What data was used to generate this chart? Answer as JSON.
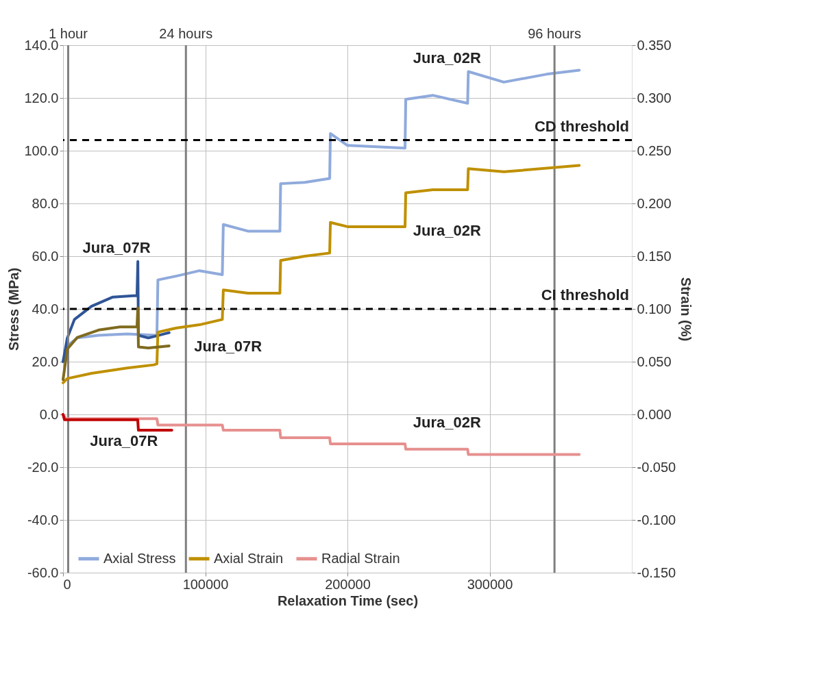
{
  "chart_data": {
    "type": "line",
    "xlabel": "Relaxation Time (sec)",
    "ylabel": "Stress (MPa)",
    "y2label": "Strain (%)",
    "xlim": [
      0,
      400000
    ],
    "xticks": [
      0,
      100000,
      200000,
      300000
    ],
    "ylim": [
      -60,
      140
    ],
    "yticks": [
      {
        "value": -60,
        "label": "-60.0"
      },
      {
        "value": -40,
        "label": "-40.0"
      },
      {
        "value": -20,
        "label": "-20.0"
      },
      {
        "value": 0,
        "label": "0.0"
      },
      {
        "value": 20,
        "label": "20.0"
      },
      {
        "value": 40,
        "label": "40.0"
      },
      {
        "value": 60,
        "label": "60.0"
      },
      {
        "value": 80,
        "label": "80.0"
      },
      {
        "value": 100,
        "label": "100.0"
      },
      {
        "value": 120,
        "label": "120.0"
      },
      {
        "value": 140,
        "label": "140.0"
      }
    ],
    "y2lim": [
      -0.15,
      0.35
    ],
    "y2ticks": [
      {
        "value": -0.15,
        "label": "-0.150"
      },
      {
        "value": -0.1,
        "label": "-0.100"
      },
      {
        "value": -0.05,
        "label": "-0.050"
      },
      {
        "value": 0,
        "label": "0.000"
      },
      {
        "value": 0.05,
        "label": "0.050"
      },
      {
        "value": 0.1,
        "label": "0.100"
      },
      {
        "value": 0.15,
        "label": "0.150"
      },
      {
        "value": 0.2,
        "label": "0.200"
      },
      {
        "value": 0.25,
        "label": "0.250"
      },
      {
        "value": 0.3,
        "label": "0.300"
      },
      {
        "value": 0.35,
        "label": "0.350"
      }
    ],
    "grid": true,
    "legend": "bottom",
    "marker": "none",
    "line_style": "solid",
    "series": [
      {
        "name": "Axial Stress",
        "color": "#8faadc",
        "x": [
          0,
          3000,
          10000,
          25000,
          45000,
          66000,
          66700,
          80000,
          96000,
          112000,
          112700,
          130000,
          152500,
          153000,
          170000,
          187500,
          188000,
          200000,
          240500,
          241000,
          260000,
          284500,
          285000,
          310000,
          340000,
          363000
        ],
        "values": [
          20,
          26,
          29,
          30,
          30.5,
          30,
          51,
          52.5,
          54.5,
          53,
          72,
          69.5,
          69.5,
          87.5,
          88,
          89.5,
          106.5,
          102,
          101,
          119.5,
          121,
          118,
          130,
          126,
          129,
          130.5
        ]
      },
      {
        "color": "#2f5597",
        "x": [
          0,
          3000,
          8000,
          20000,
          35000,
          49300,
          52000,
          52600,
          53000,
          60000,
          74600
        ],
        "values": [
          20,
          29,
          36,
          41,
          44.5,
          45,
          45,
          58,
          30,
          29,
          31
        ]
      },
      {
        "name": "Axial Strain",
        "color": "#bf9000",
        "axis": "y2",
        "x": [
          0,
          3000,
          20000,
          45000,
          63800,
          66000,
          66700,
          80000,
          96000,
          112000,
          112700,
          130000,
          152500,
          153000,
          170000,
          187500,
          188000,
          200000,
          240500,
          241000,
          260000,
          284500,
          285000,
          310000,
          363000
        ],
        "values": [
          0.03,
          0.034,
          0.039,
          0.044,
          0.047,
          0.048,
          0.078,
          0.082,
          0.085,
          0.09,
          0.118,
          0.115,
          0.115,
          0.146,
          0.15,
          0.153,
          0.182,
          0.178,
          0.178,
          0.21,
          0.213,
          0.213,
          0.233,
          0.23,
          0.236
        ]
      },
      {
        "name": "Radial Strain",
        "color": "#e6908f",
        "axis": "y2",
        "x": [
          0,
          2000,
          66000,
          66700,
          112000,
          112700,
          152500,
          153000,
          187500,
          188000,
          240500,
          241000,
          284500,
          285000,
          363000
        ],
        "values": [
          0,
          -0.004,
          -0.004,
          -0.01,
          -0.01,
          -0.015,
          -0.015,
          -0.022,
          -0.022,
          -0.028,
          -0.028,
          -0.033,
          -0.033,
          -0.038,
          -0.038
        ]
      },
      {
        "color": "#7f6a1f",
        "axis": "y2",
        "x": [
          0,
          3000,
          10000,
          25000,
          40000,
          52000,
          52600,
          53000,
          60000,
          74600
        ],
        "values": [
          0.033,
          0.062,
          0.073,
          0.08,
          0.083,
          0.083,
          0.101,
          0.064,
          0.063,
          0.065
        ]
      },
      {
        "color": "#c00000",
        "axis": "y2",
        "x": [
          0,
          1000,
          52500,
          53000,
          76500
        ],
        "values": [
          0,
          -0.005,
          -0.005,
          -0.015,
          -0.015
        ]
      }
    ],
    "ref_lines": [
      {
        "axis": "x",
        "value": 3600,
        "label": "1 hour",
        "color": "#7f7f7f"
      },
      {
        "axis": "x",
        "value": 86400,
        "label": "24 hours",
        "color": "#7f7f7f"
      },
      {
        "axis": "x",
        "value": 345600,
        "label": "96 hours",
        "color": "#7f7f7f"
      },
      {
        "axis": "y",
        "value": 104,
        "label": "CD threshold",
        "color": "#000000",
        "line_style": "dashed"
      },
      {
        "axis": "y",
        "value": 40,
        "label": "CI threshold",
        "color": "#000000",
        "line_style": "dashed"
      }
    ],
    "annotations": [
      "Jura_07R",
      "Jura_07R",
      "Jura_07R",
      "Jura_02R",
      "Jura_02R",
      "Jura_02R"
    ]
  }
}
